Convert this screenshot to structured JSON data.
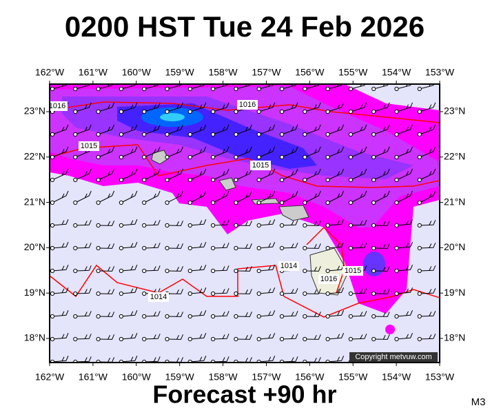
{
  "title": "0200 HST Tue 24 Feb 2026",
  "footer": "Forecast +90 hr",
  "model": "M3",
  "copyright": "Copyright metvuw.com",
  "longitude_labels": [
    "162°W",
    "161°W",
    "160°W",
    "159°W",
    "158°W",
    "157°W",
    "156°W",
    "155°W",
    "154°W",
    "153°W"
  ],
  "latitude_labels": [
    "23°N",
    "22°N",
    "21°N",
    "20°N",
    "19°N",
    "18°N"
  ],
  "isobar_labels": [
    "1016",
    "1016",
    "1015",
    "1015",
    "1014",
    "1014",
    "1016",
    "1015"
  ]
}
